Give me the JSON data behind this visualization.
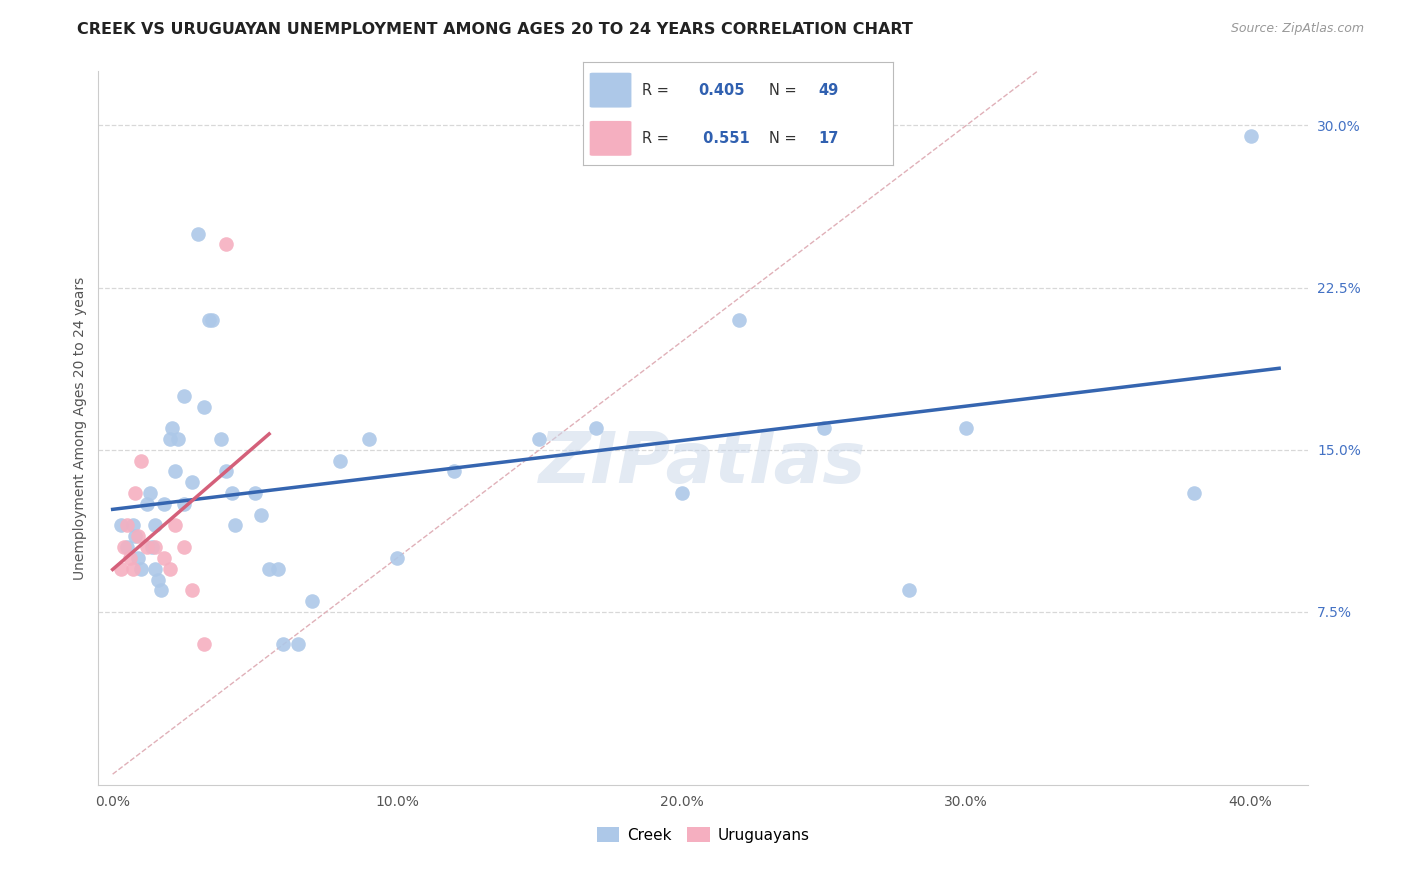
{
  "title": "CREEK VS URUGUAYAN UNEMPLOYMENT AMONG AGES 20 TO 24 YEARS CORRELATION CHART",
  "source": "Source: ZipAtlas.com",
  "ylabel": "Unemployment Among Ages 20 to 24 years",
  "xlabel_ticks": [
    "0.0%",
    "10.0%",
    "20.0%",
    "30.0%",
    "40.0%"
  ],
  "xlabel_vals": [
    0.0,
    0.1,
    0.2,
    0.3,
    0.4
  ],
  "ylabel_ticks": [
    "7.5%",
    "15.0%",
    "22.5%",
    "30.0%"
  ],
  "ylabel_vals": [
    0.075,
    0.15,
    0.225,
    0.3
  ],
  "xlim": [
    -0.005,
    0.42
  ],
  "ylim": [
    -0.005,
    0.325
  ],
  "creek_r": 0.405,
  "creek_n": 49,
  "uruguayan_r": 0.551,
  "uruguayan_n": 17,
  "creek_color": "#adc8e8",
  "uruguayan_color": "#f5afc0",
  "creek_line_color": "#3565b0",
  "uruguayan_line_color": "#d4607a",
  "diagonal_color": "#e0b0b8",
  "background_color": "#ffffff",
  "grid_color": "#d8d8d8",
  "watermark": "ZIPatlas",
  "creek_x": [
    0.003,
    0.005,
    0.007,
    0.008,
    0.009,
    0.01,
    0.012,
    0.013,
    0.014,
    0.015,
    0.015,
    0.016,
    0.017,
    0.018,
    0.02,
    0.021,
    0.022,
    0.023,
    0.025,
    0.025,
    0.028,
    0.03,
    0.032,
    0.034,
    0.035,
    0.038,
    0.04,
    0.042,
    0.043,
    0.05,
    0.052,
    0.055,
    0.058,
    0.06,
    0.065,
    0.07,
    0.08,
    0.09,
    0.1,
    0.12,
    0.15,
    0.17,
    0.2,
    0.22,
    0.25,
    0.28,
    0.3,
    0.38,
    0.4
  ],
  "creek_y": [
    0.115,
    0.105,
    0.115,
    0.11,
    0.1,
    0.095,
    0.125,
    0.13,
    0.105,
    0.115,
    0.095,
    0.09,
    0.085,
    0.125,
    0.155,
    0.16,
    0.14,
    0.155,
    0.175,
    0.125,
    0.135,
    0.25,
    0.17,
    0.21,
    0.21,
    0.155,
    0.14,
    0.13,
    0.115,
    0.13,
    0.12,
    0.095,
    0.095,
    0.06,
    0.06,
    0.08,
    0.145,
    0.155,
    0.1,
    0.14,
    0.155,
    0.16,
    0.13,
    0.21,
    0.16,
    0.085,
    0.16,
    0.13,
    0.295
  ],
  "uruguayan_x": [
    0.003,
    0.004,
    0.005,
    0.006,
    0.007,
    0.008,
    0.009,
    0.01,
    0.012,
    0.015,
    0.018,
    0.02,
    0.022,
    0.025,
    0.028,
    0.032,
    0.04
  ],
  "uruguayan_y": [
    0.095,
    0.105,
    0.115,
    0.1,
    0.095,
    0.13,
    0.11,
    0.145,
    0.105,
    0.105,
    0.1,
    0.095,
    0.115,
    0.105,
    0.085,
    0.06,
    0.245
  ]
}
